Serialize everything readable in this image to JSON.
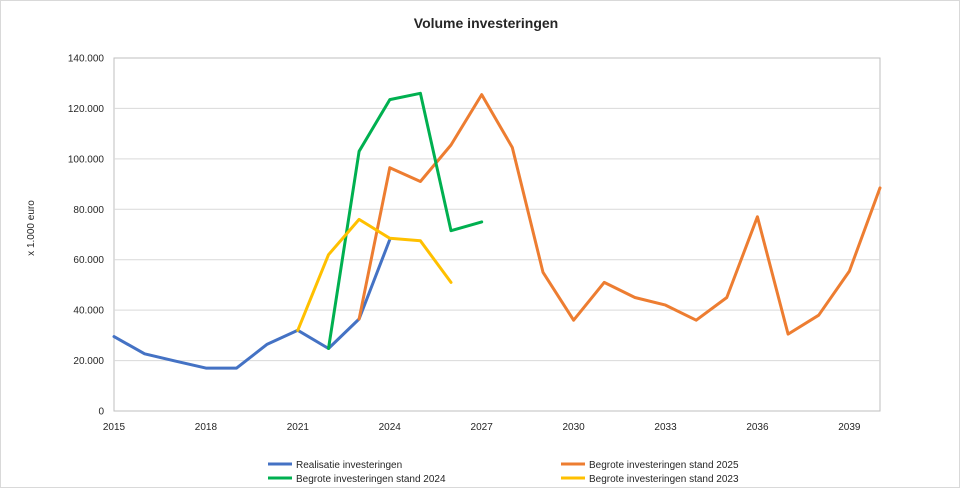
{
  "chart_data": {
    "type": "line",
    "title": "Volume investeringen",
    "xlabel": "",
    "ylabel": "x 1.000 euro",
    "xlim": [
      2015,
      2040
    ],
    "ylim": [
      0,
      140000
    ],
    "x_ticks": [
      2015,
      2018,
      2021,
      2024,
      2027,
      2030,
      2033,
      2036,
      2039
    ],
    "x_tick_labels": [
      "2015",
      "2018",
      "2021",
      "2024",
      "2027",
      "2030",
      "2033",
      "2036",
      "2039"
    ],
    "y_ticks": [
      0,
      20000,
      40000,
      60000,
      80000,
      100000,
      120000,
      140000
    ],
    "y_tick_labels": [
      "0",
      "20.000",
      "40.000",
      "60.000",
      "80.000",
      "100.000",
      "120.000",
      "140.000"
    ],
    "grid": "horizontal",
    "legend_position": "bottom",
    "series": [
      {
        "name": "Realisatie investeringen",
        "color": "#4472C4",
        "x": [
          2015,
          2016,
          2017,
          2018,
          2019,
          2020,
          2021,
          2022,
          2023,
          2024
        ],
        "values": [
          29500,
          22700,
          19800,
          17000,
          17000,
          26500,
          32000,
          24800,
          36500,
          68000
        ]
      },
      {
        "name": "Begrote investeringen stand 2025",
        "color": "#ED7D31",
        "x": [
          2023,
          2024,
          2025,
          2026,
          2027,
          2028,
          2029,
          2030,
          2031,
          2032,
          2033,
          2034,
          2035,
          2036,
          2037,
          2038,
          2039,
          2040
        ],
        "values": [
          36500,
          96500,
          91000,
          105500,
          125500,
          104500,
          55000,
          36000,
          51000,
          45000,
          42000,
          36000,
          45000,
          77000,
          30500,
          38000,
          55500,
          88500
        ]
      },
      {
        "name": "Begrote investeringen stand 2024",
        "color": "#00B050",
        "x": [
          2022,
          2023,
          2024,
          2025,
          2026,
          2027
        ],
        "values": [
          24800,
          103000,
          123500,
          126000,
          71500,
          75000
        ]
      },
      {
        "name": "Begrote investeringen stand 2023",
        "color": "#FFC000",
        "x": [
          2021,
          2022,
          2023,
          2024,
          2025,
          2026
        ],
        "values": [
          32000,
          62000,
          76000,
          68500,
          67500,
          51000
        ]
      }
    ]
  }
}
